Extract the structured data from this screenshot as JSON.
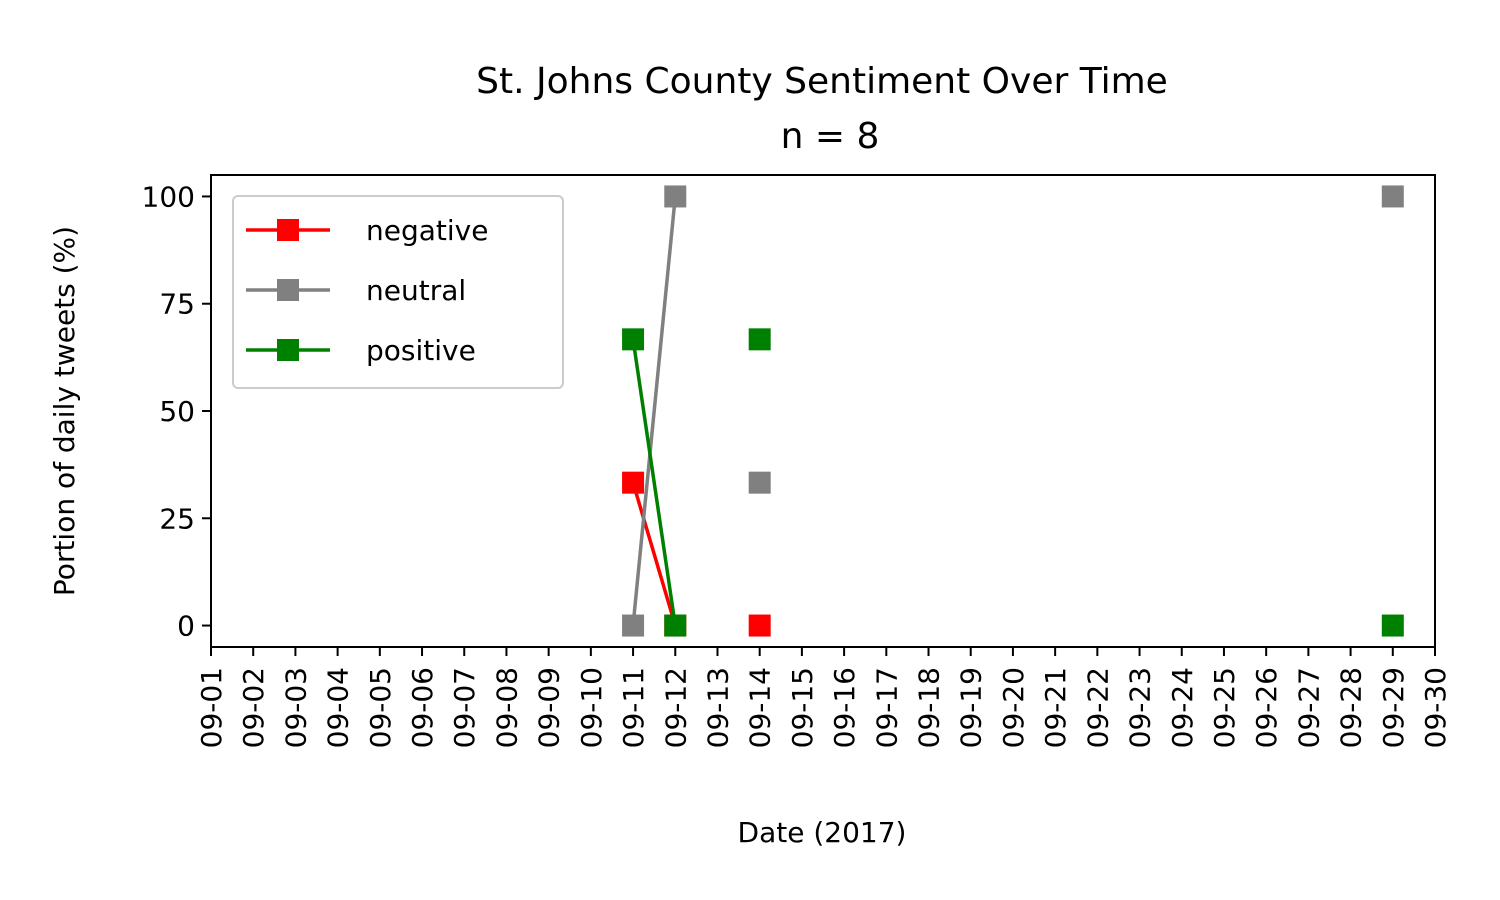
{
  "chart_data": {
    "type": "line",
    "title": "St. Johns County Sentiment Over Time",
    "subtitle": "n = 8",
    "xlabel": "Date (2017)",
    "ylabel": "Portion of daily tweets (%)",
    "ylim": [
      -5,
      105
    ],
    "yticks": [
      0,
      25,
      50,
      75,
      100
    ],
    "xlim": [
      "2017-09-01",
      "2017-09-30"
    ],
    "x_tick_labels": [
      "09-01",
      "09-02",
      "09-03",
      "09-04",
      "09-05",
      "09-06",
      "09-07",
      "09-08",
      "09-09",
      "09-10",
      "09-11",
      "09-12",
      "09-13",
      "09-14",
      "09-15",
      "09-16",
      "09-17",
      "09-18",
      "09-19",
      "09-20",
      "09-21",
      "09-22",
      "09-23",
      "09-24",
      "09-25",
      "09-26",
      "09-27",
      "09-28",
      "09-29",
      "09-30"
    ],
    "grid": false,
    "legend_position": "upper left",
    "series": [
      {
        "name": "negative",
        "color": "#ff0000",
        "marker": "square",
        "points": [
          {
            "x": "2017-09-11",
            "y": 33.3
          },
          {
            "x": "2017-09-12",
            "y": 0
          },
          {
            "x": "2017-09-14",
            "y": 0
          }
        ]
      },
      {
        "name": "neutral",
        "color": "#808080",
        "marker": "square",
        "points": [
          {
            "x": "2017-09-11",
            "y": 0
          },
          {
            "x": "2017-09-12",
            "y": 100
          },
          {
            "x": "2017-09-14",
            "y": 33.3
          },
          {
            "x": "2017-09-29",
            "y": 100
          }
        ]
      },
      {
        "name": "positive",
        "color": "#008000",
        "marker": "square",
        "points": [
          {
            "x": "2017-09-11",
            "y": 66.7
          },
          {
            "x": "2017-09-12",
            "y": 0
          },
          {
            "x": "2017-09-14",
            "y": 66.7
          },
          {
            "x": "2017-09-29",
            "y": 0
          }
        ]
      }
    ]
  }
}
